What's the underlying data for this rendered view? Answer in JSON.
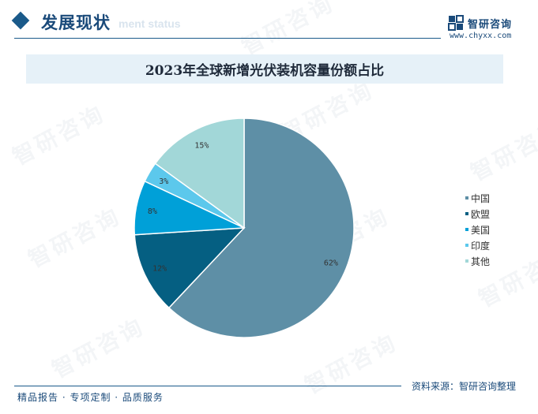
{
  "header": {
    "title": "发展现状",
    "subtitle": "ment status",
    "brand": "智研咨询",
    "url": "www.chyxx.com"
  },
  "banner": {
    "title": "2023年全球新增光伏装机容量份额占比"
  },
  "chart_data": {
    "type": "pie",
    "title": "2023年全球新增光伏装机容量份额占比",
    "categories": [
      "中国",
      "欧盟",
      "美国",
      "印度",
      "其他"
    ],
    "values": [
      62,
      12,
      8,
      3,
      15
    ],
    "labels": [
      "62%",
      "12%",
      "8%",
      "3%",
      "15%"
    ],
    "colors": [
      "#5e8fa6",
      "#055f82",
      "#00a0d8",
      "#5cc8ec",
      "#a2d7d8"
    ],
    "start_angle_deg": 0,
    "direction": "clockwise",
    "legend_position": "right"
  },
  "footer": {
    "source": "资料来源：智研咨询整理",
    "slogan": "精品报告 · 专项定制 · 品质服务"
  },
  "watermark": {
    "text": "智研咨询"
  }
}
